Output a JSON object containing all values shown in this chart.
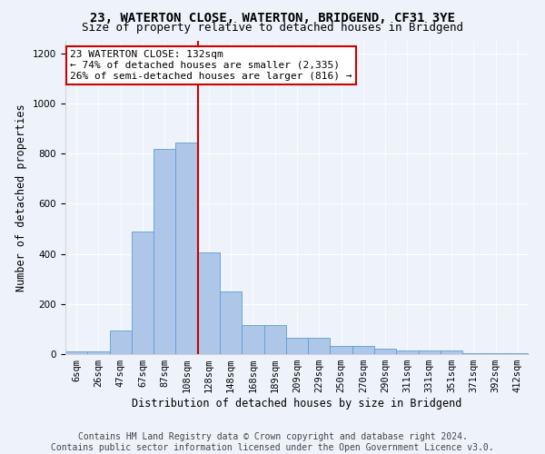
{
  "title": "23, WATERTON CLOSE, WATERTON, BRIDGEND, CF31 3YE",
  "subtitle": "Size of property relative to detached houses in Bridgend",
  "xlabel": "Distribution of detached houses by size in Bridgend",
  "ylabel": "Number of detached properties",
  "bar_labels": [
    "6sqm",
    "26sqm",
    "47sqm",
    "67sqm",
    "87sqm",
    "108sqm",
    "128sqm",
    "148sqm",
    "168sqm",
    "189sqm",
    "209sqm",
    "229sqm",
    "250sqm",
    "270sqm",
    "290sqm",
    "311sqm",
    "331sqm",
    "351sqm",
    "371sqm",
    "392sqm",
    "412sqm"
  ],
  "bar_values": [
    10,
    12,
    95,
    490,
    820,
    845,
    405,
    250,
    115,
    115,
    65,
    65,
    32,
    32,
    20,
    15,
    15,
    14,
    5,
    2,
    5
  ],
  "bar_color": "#aec6e8",
  "bar_edge_color": "#5a9fd4",
  "property_line_idx": 6,
  "annotation_label": "23 WATERTON CLOSE: 132sqm",
  "annotation_line1": "← 74% of detached houses are smaller (2,335)",
  "annotation_line2": "26% of semi-detached houses are larger (816) →",
  "annotation_box_color": "#ffffff",
  "annotation_box_edge": "#cc0000",
  "vline_color": "#cc0000",
  "ylim": [
    0,
    1250
  ],
  "yticks": [
    0,
    200,
    400,
    600,
    800,
    1000,
    1200
  ],
  "footer_line1": "Contains HM Land Registry data © Crown copyright and database right 2024.",
  "footer_line2": "Contains public sector information licensed under the Open Government Licence v3.0.",
  "title_fontsize": 10,
  "subtitle_fontsize": 9,
  "axis_label_fontsize": 8.5,
  "tick_fontsize": 7.5,
  "annotation_fontsize": 8,
  "footer_fontsize": 7,
  "bg_color": "#eef2fb"
}
